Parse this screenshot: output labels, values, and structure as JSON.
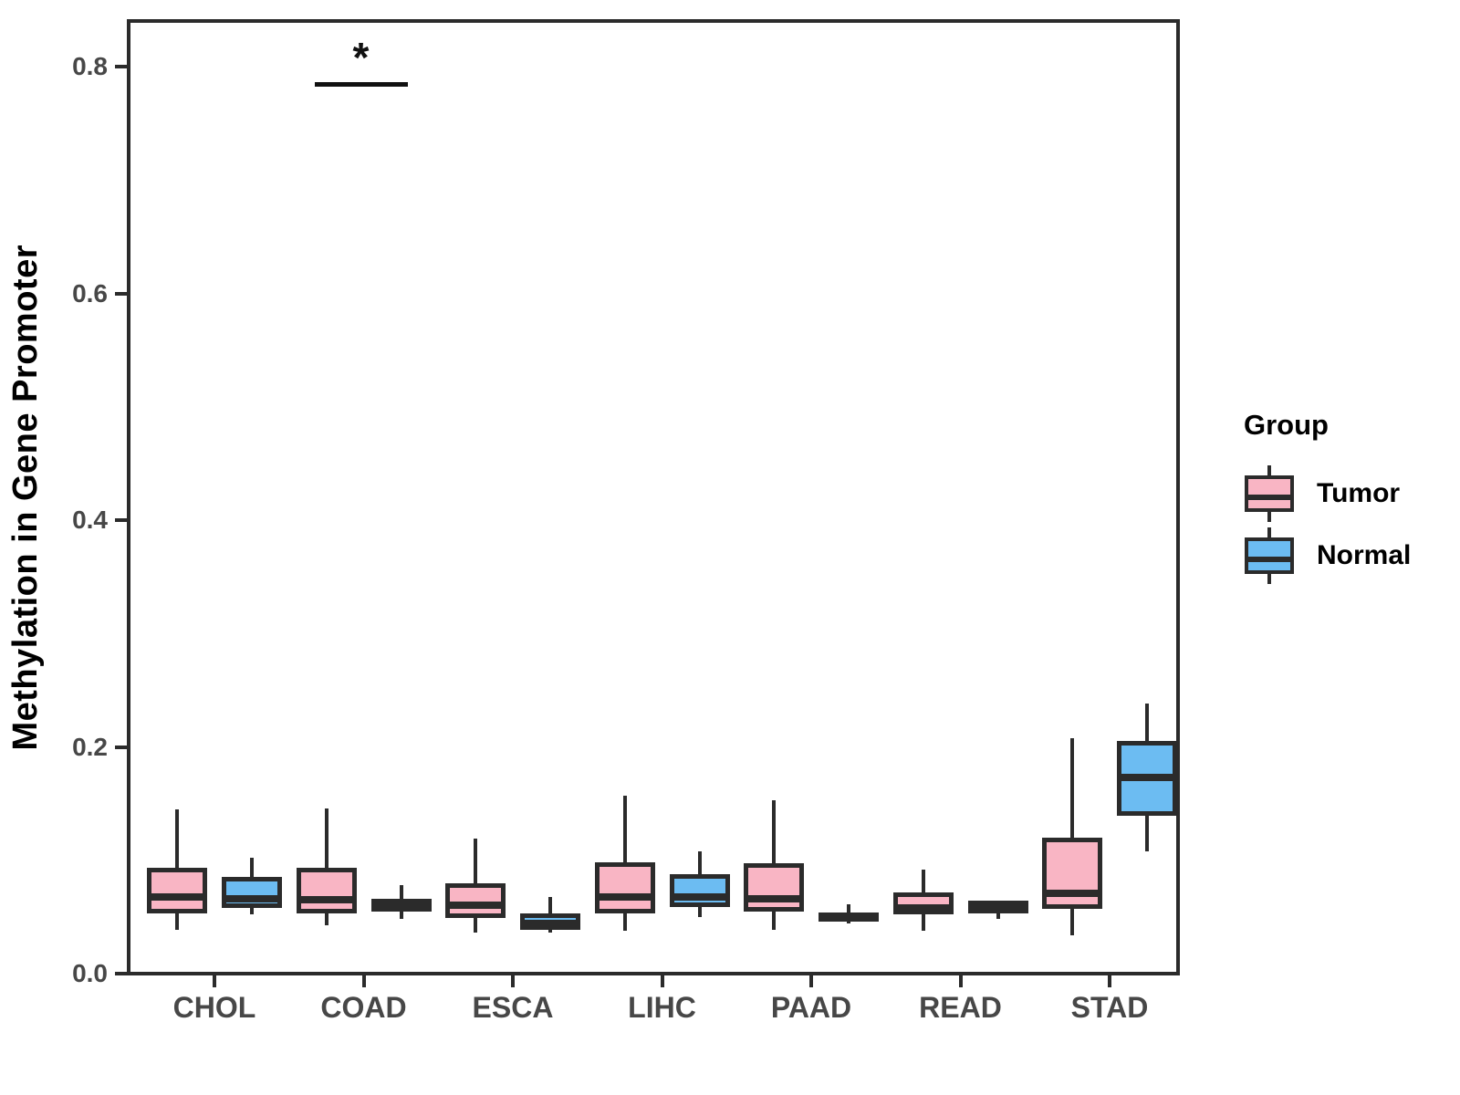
{
  "figure": {
    "y_axis_title": "Methylation in Gene Promoter",
    "legend": {
      "title": "Group",
      "items": [
        {
          "label": "Tumor",
          "color": "#F9B5C4"
        },
        {
          "label": "Normal",
          "color": "#6CBCF2"
        }
      ]
    }
  },
  "style": {
    "tumor_fill": "#F9B5C4",
    "normal_fill": "#6CBCF2",
    "box_border": "#2b2b2b",
    "axis_line": "#2b2b2b",
    "tick_text": "#474747",
    "title_text": "#000000"
  },
  "chart_data": {
    "type": "grouped_boxplot",
    "title": "",
    "xlabel": "",
    "ylabel": "Methylation in Gene Promoter",
    "categories": [
      "CHOL",
      "COAD",
      "ESCA",
      "LIHC",
      "PAAD",
      "READ",
      "STAD"
    ],
    "groups": [
      "Tumor",
      "Normal"
    ],
    "ylim": [
      0,
      0.84
    ],
    "yticks": [
      0.0,
      0.2,
      0.4,
      0.6,
      0.8
    ],
    "grid": false,
    "legend_position": "right",
    "series": [
      {
        "name": "Tumor",
        "color": "#F9B5C4",
        "boxes": [
          {
            "category": "CHOL",
            "min": 0.039,
            "q1": 0.053,
            "median": 0.068,
            "q3": 0.093,
            "max": 0.145
          },
          {
            "category": "COAD",
            "min": 0.043,
            "q1": 0.053,
            "median": 0.065,
            "q3": 0.093,
            "max": 0.146
          },
          {
            "category": "ESCA",
            "min": 0.036,
            "q1": 0.049,
            "median": 0.06,
            "q3": 0.08,
            "max": 0.119
          },
          {
            "category": "LIHC",
            "min": 0.038,
            "q1": 0.053,
            "median": 0.068,
            "q3": 0.098,
            "max": 0.157
          },
          {
            "category": "PAAD",
            "min": 0.039,
            "q1": 0.055,
            "median": 0.066,
            "q3": 0.097,
            "max": 0.153
          },
          {
            "category": "READ",
            "min": 0.038,
            "q1": 0.052,
            "median": 0.058,
            "q3": 0.072,
            "max": 0.092
          },
          {
            "category": "STAD",
            "min": 0.034,
            "q1": 0.057,
            "median": 0.071,
            "q3": 0.12,
            "max": 0.208
          }
        ]
      },
      {
        "name": "Normal",
        "color": "#6CBCF2",
        "boxes": [
          {
            "category": "CHOL",
            "min": 0.052,
            "q1": 0.058,
            "median": 0.066,
            "q3": 0.085,
            "max": 0.102
          },
          {
            "category": "COAD",
            "min": 0.048,
            "q1": 0.055,
            "median": 0.062,
            "q3": 0.066,
            "max": 0.078
          },
          {
            "category": "ESCA",
            "min": 0.036,
            "q1": 0.039,
            "median": 0.044,
            "q3": 0.053,
            "max": 0.068
          },
          {
            "category": "LIHC",
            "min": 0.05,
            "q1": 0.059,
            "median": 0.068,
            "q3": 0.088,
            "max": 0.108
          },
          {
            "category": "PAAD",
            "min": 0.044,
            "q1": 0.046,
            "median": 0.05,
            "q3": 0.054,
            "max": 0.061
          },
          {
            "category": "READ",
            "min": 0.048,
            "q1": 0.053,
            "median": 0.058,
            "q3": 0.064,
            "max": 0.064
          },
          {
            "category": "STAD",
            "min": 0.108,
            "q1": 0.139,
            "median": 0.173,
            "q3": 0.205,
            "max": 0.238
          }
        ]
      }
    ],
    "annotations": [
      {
        "category": "COAD",
        "label": "*",
        "bar_y": 0.785
      }
    ]
  }
}
